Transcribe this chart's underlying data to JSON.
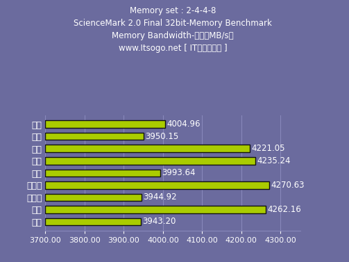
{
  "title_lines": [
    "Memory set : 2-4-4-8",
    "ScienceMark 2.0 Final 32bit-Memory Benchmark",
    "Memory Bandwidth-速率（MB/s）",
    "www.Itsogo.net [ IT搜购评测室 ]"
  ],
  "categories": [
    "勤茵",
    "金邦",
    "超胜",
    "现代",
    "宇瞻",
    "金士顿",
    "金士泰",
    "光电",
    "威刚"
  ],
  "values": [
    4004.96,
    3950.15,
    4221.05,
    4235.24,
    3993.64,
    4270.63,
    3944.92,
    4262.16,
    3943.2
  ],
  "bar_color": "#AACC00",
  "bar_edge_color": "#111111",
  "background_color": "#6B6B9E",
  "text_color": "#FFFFFF",
  "grid_color": "#8888BB",
  "xlim": [
    3700,
    4350
  ],
  "xticks": [
    3700.0,
    3800.0,
    3900.0,
    4000.0,
    4100.0,
    4200.0,
    4300.0
  ],
  "title_fontsize": 8.5,
  "label_fontsize": 9,
  "value_fontsize": 8.5,
  "tick_fontsize": 8
}
